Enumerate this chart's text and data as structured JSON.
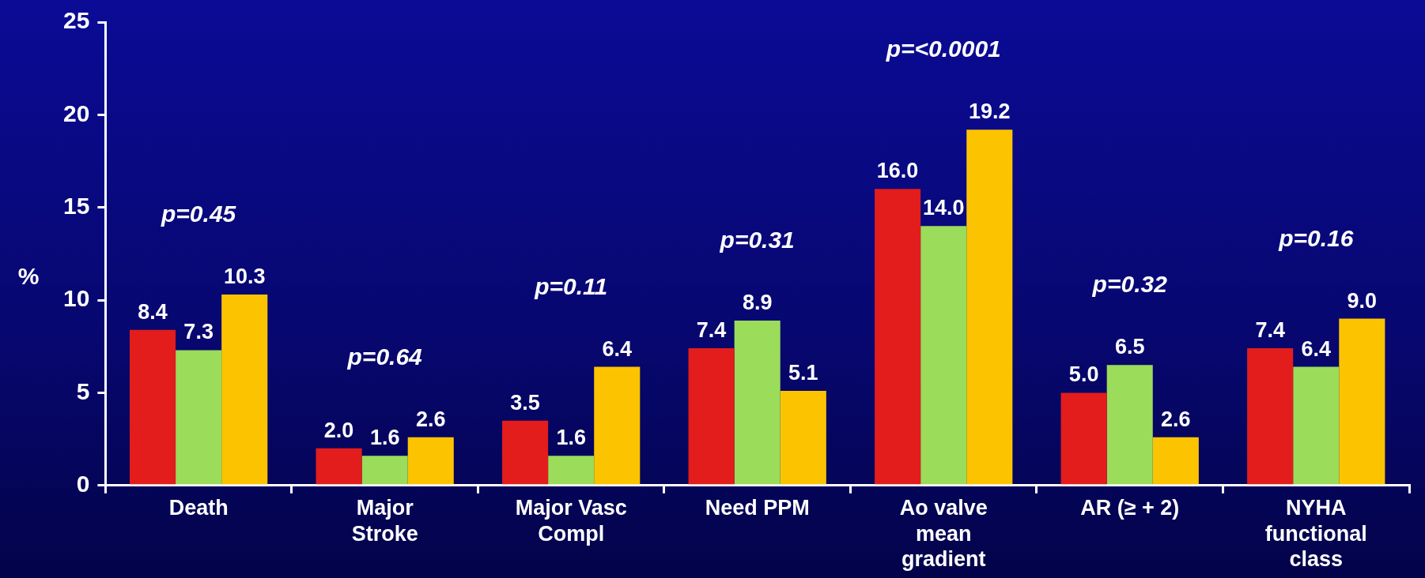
{
  "chart_data": {
    "type": "bar",
    "ylabel": "%",
    "categories": [
      "Death",
      "Major Stroke",
      "Major Vasc Compl",
      "Need PPM",
      "Ao valve mean gradient",
      "AR (≥ + 2)",
      "NYHA functional class"
    ],
    "series": [
      {
        "color": "#e31c1c",
        "values": [
          8.4,
          2.0,
          3.5,
          7.4,
          16.0,
          5.0,
          7.4
        ],
        "value_labels": [
          "8.4",
          "2.0",
          "3.5",
          "7.4",
          "16.0",
          "5.0",
          "7.4"
        ]
      },
      {
        "color": "#9bdc5a",
        "values": [
          7.3,
          1.6,
          1.6,
          8.9,
          14.0,
          6.5,
          6.4
        ],
        "value_labels": [
          "7.3",
          "1.6",
          "1.6",
          "8.9",
          "14.0",
          "6.5",
          "6.4"
        ]
      },
      {
        "color": "#fcc400",
        "values": [
          10.3,
          2.6,
          6.4,
          5.1,
          19.2,
          2.6,
          9.0
        ],
        "value_labels": [
          "10.3",
          "2.6",
          "6.4",
          "5.1",
          "19.2",
          "2.6",
          "9.0"
        ]
      }
    ],
    "ylim": [
      0,
      25
    ],
    "yticks": [
      0,
      5,
      10,
      15,
      20,
      25
    ],
    "grid": false,
    "legend": false,
    "annotations": [
      "p=0.45",
      "p=0.64",
      "p=0.11",
      "p=0.31",
      "p=<0.0001",
      "p=0.32",
      "p=0.16"
    ]
  }
}
